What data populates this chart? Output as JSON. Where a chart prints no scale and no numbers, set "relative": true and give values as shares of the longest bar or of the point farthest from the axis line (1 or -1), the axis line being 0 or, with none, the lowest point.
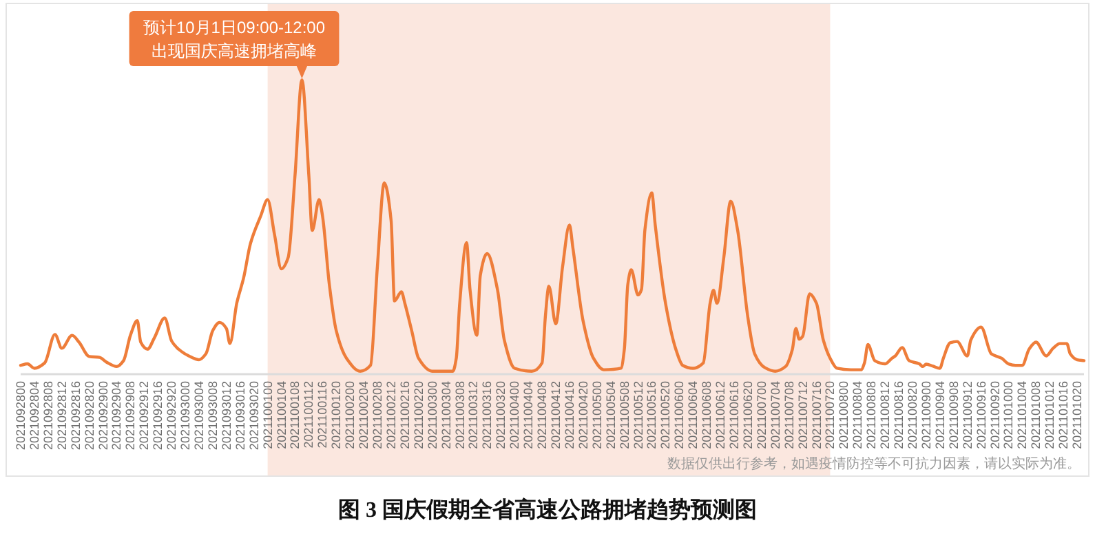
{
  "chart_data": {
    "type": "line",
    "title": "图 3 国庆假期全省高速公路拥堵趋势预测图",
    "relative": true,
    "color": "#ee7d3a",
    "x": [
      "2021-09-28T00:00",
      "2021-09-28T02:00",
      "2021-09-28T04:00",
      "2021-09-28T07:00",
      "2021-09-28T10:00",
      "2021-09-28T12:00",
      "2021-09-28T15:00",
      "2021-09-28T17:00",
      "2021-09-28T20:00",
      "2021-09-28T23:00",
      "2021-09-29T01:00",
      "2021-09-29T04:00",
      "2021-09-29T06:00",
      "2021-09-29T08:00",
      "2021-09-29T10:00",
      "2021-09-29T11:00",
      "2021-09-29T13:00",
      "2021-09-29T15:00",
      "2021-09-29T18:00",
      "2021-09-29T20:00",
      "2021-09-29T22:00",
      "2021-09-30T01:00",
      "2021-09-30T04:00",
      "2021-09-30T06:00",
      "2021-09-30T08:00",
      "2021-09-30T10:00",
      "2021-09-30T12:00",
      "2021-09-30T13:00",
      "2021-09-30T15:00",
      "2021-09-30T17:00",
      "2021-09-30T19:00",
      "2021-09-30T22:00",
      "2021-10-01T00:00",
      "2021-10-01T02:00",
      "2021-10-01T04:00",
      "2021-10-01T06:00",
      "2021-10-01T08:00",
      "2021-10-01T10:00",
      "2021-10-01T12:00",
      "2021-10-01T13:00",
      "2021-10-01T15:00",
      "2021-10-01T16:00",
      "2021-10-01T18:00",
      "2021-10-01T20:00",
      "2021-10-01T23:00",
      "2021-10-02T03:00",
      "2021-10-02T06:00",
      "2021-10-02T08:00",
      "2021-10-02T10:00",
      "2021-10-02T12:00",
      "2021-10-02T13:00",
      "2021-10-02T15:00",
      "2021-10-02T16:00",
      "2021-10-02T18:00",
      "2021-10-02T20:00",
      "2021-10-03T00:00",
      "2021-10-03T06:00",
      "2021-10-03T07:00",
      "2021-10-03T08:00",
      "2021-10-03T10:00",
      "2021-10-03T11:00",
      "2021-10-03T13:00",
      "2021-10-03T14:00",
      "2021-10-03T16:00",
      "2021-10-03T19:00",
      "2021-10-03T21:00",
      "2021-10-04T00:00",
      "2021-10-04T05:00",
      "2021-10-04T08:00",
      "2021-10-04T09:00",
      "2021-10-04T10:00",
      "2021-10-04T12:00",
      "2021-10-04T14:00",
      "2021-10-04T16:00",
      "2021-10-04T17:00",
      "2021-10-04T20:00",
      "2021-10-04T23:00",
      "2021-10-05T02:00",
      "2021-10-05T07:00",
      "2021-10-05T08:00",
      "2021-10-05T09:00",
      "2021-10-05T10:00",
      "2021-10-05T12:00",
      "2021-10-05T13:00",
      "2021-10-05T14:00",
      "2021-10-05T16:00",
      "2021-10-05T17:00",
      "2021-10-05T20:00",
      "2021-10-05T23:00",
      "2021-10-06T01:00",
      "2021-10-06T04:00",
      "2021-10-06T07:00",
      "2021-10-06T09:00",
      "2021-10-06T10:00",
      "2021-10-06T11:00",
      "2021-10-06T13:00",
      "2021-10-06T15:00",
      "2021-10-06T17:00",
      "2021-10-06T20:00",
      "2021-10-06T22:00",
      "2021-10-07T01:00",
      "2021-10-07T04:00",
      "2021-10-07T07:00",
      "2021-10-07T09:00",
      "2021-10-07T10:00",
      "2021-10-07T11:00",
      "2021-10-07T12:00",
      "2021-10-07T14:00",
      "2021-10-07T16:00",
      "2021-10-07T18:00",
      "2021-10-07T20:00",
      "2021-10-07T22:00",
      "2021-10-08T02:00",
      "2021-10-08T05:00",
      "2021-10-08T06:00",
      "2021-10-08T07:00",
      "2021-10-08T09:00",
      "2021-10-08T12:00",
      "2021-10-08T14:00",
      "2021-10-08T15:00",
      "2021-10-08T17:00",
      "2021-10-08T19:00",
      "2021-10-08T22:00",
      "2021-10-08T23:00",
      "2021-10-09T00:00",
      "2021-10-09T02:00",
      "2021-10-09T04:00",
      "2021-10-09T05:00",
      "2021-10-09T07:00",
      "2021-10-09T09:00",
      "2021-10-09T12:00",
      "2021-10-09T13:00",
      "2021-10-09T16:00",
      "2021-10-09T19:00",
      "2021-10-09T22:00",
      "2021-10-10T00:00",
      "2021-10-10T02:00",
      "2021-10-10T04:00",
      "2021-10-10T06:00",
      "2021-10-10T08:00",
      "2021-10-10T11:00",
      "2021-10-10T13:00",
      "2021-10-10T15:00",
      "2021-10-10T17:00",
      "2021-10-10T18:00",
      "2021-10-10T20:00",
      "2021-10-10T22:00"
    ],
    "values": [
      0.03,
      0.035,
      0.02,
      0.038,
      0.135,
      0.088,
      0.132,
      0.109,
      0.06,
      0.057,
      0.041,
      0.026,
      0.046,
      0.132,
      0.182,
      0.109,
      0.085,
      0.124,
      0.191,
      0.113,
      0.085,
      0.062,
      0.049,
      0.069,
      0.148,
      0.176,
      0.155,
      0.104,
      0.241,
      0.327,
      0.444,
      0.538,
      0.593,
      0.475,
      0.358,
      0.397,
      0.678,
      1,
      0.678,
      0.488,
      0.593,
      0.538,
      0.304,
      0.148,
      0.054,
      0.01,
      0.03,
      0.366,
      0.65,
      0.522,
      0.249,
      0.28,
      0.241,
      0.148,
      0.054,
      0.01,
      0.01,
      0.054,
      0.241,
      0.447,
      0.288,
      0.132,
      0.335,
      0.41,
      0.288,
      0.116,
      0.02,
      0.01,
      0.038,
      0.2,
      0.299,
      0.171,
      0.366,
      0.507,
      0.429,
      0.179,
      0.054,
      0.015,
      0.02,
      0.085,
      0.304,
      0.355,
      0.269,
      0.288,
      0.491,
      0.616,
      0.507,
      0.241,
      0.085,
      0.03,
      0.02,
      0.038,
      0.241,
      0.285,
      0.241,
      0.397,
      0.588,
      0.491,
      0.194,
      0.069,
      0.022,
      0.01,
      0.026,
      0.085,
      0.155,
      0.119,
      0.129,
      0.273,
      0.241,
      0.116,
      0.054,
      0.02,
      0.015,
      0.015,
      0.038,
      0.101,
      0.046,
      0.035,
      0.054,
      0.062,
      0.09,
      0.046,
      0.035,
      0.026,
      0.034,
      0.027,
      0.02,
      0.054,
      0.107,
      0.111,
      0.062,
      0.116,
      0.16,
      0.069,
      0.054,
      0.035,
      0.03,
      0.03,
      0.085,
      0.109,
      0.062,
      0.088,
      0.104,
      0.104,
      0.069,
      0.049,
      0.046
    ],
    "xlim": [
      "2021-09-28T00:00",
      "2021-10-10T22:00"
    ],
    "xticks": [
      {
        "value": "2021-09-28T00:00",
        "label": "2021092800"
      },
      {
        "value": "2021-09-28T04:00",
        "label": "2021092804"
      },
      {
        "value": "2021-09-28T08:00",
        "label": "2021092808"
      },
      {
        "value": "2021-09-28T12:00",
        "label": "2021092812"
      },
      {
        "value": "2021-09-28T16:00",
        "label": "2021092816"
      },
      {
        "value": "2021-09-28T20:00",
        "label": "2021092820"
      },
      {
        "value": "2021-09-29T00:00",
        "label": "2021092900"
      },
      {
        "value": "2021-09-29T04:00",
        "label": "2021092904"
      },
      {
        "value": "2021-09-29T08:00",
        "label": "2021092908"
      },
      {
        "value": "2021-09-29T12:00",
        "label": "2021092912"
      },
      {
        "value": "2021-09-29T16:00",
        "label": "2021092916"
      },
      {
        "value": "2021-09-29T20:00",
        "label": "2021092920"
      },
      {
        "value": "2021-09-30T00:00",
        "label": "2021093000"
      },
      {
        "value": "2021-09-30T04:00",
        "label": "2021093004"
      },
      {
        "value": "2021-09-30T08:00",
        "label": "2021093008"
      },
      {
        "value": "2021-09-30T12:00",
        "label": "2021093012"
      },
      {
        "value": "2021-09-30T16:00",
        "label": "2021093016"
      },
      {
        "value": "2021-09-30T20:00",
        "label": "2021093020"
      },
      {
        "value": "2021-10-01T00:00",
        "label": "2021100100"
      },
      {
        "value": "2021-10-01T04:00",
        "label": "2021100104"
      },
      {
        "value": "2021-10-01T08:00",
        "label": "2021100108"
      },
      {
        "value": "2021-10-01T12:00",
        "label": "2021100112"
      },
      {
        "value": "2021-10-01T16:00",
        "label": "2021100116"
      },
      {
        "value": "2021-10-01T20:00",
        "label": "2021100120"
      },
      {
        "value": "2021-10-02T00:00",
        "label": "2021100200"
      },
      {
        "value": "2021-10-02T04:00",
        "label": "2021100204"
      },
      {
        "value": "2021-10-02T08:00",
        "label": "2021100208"
      },
      {
        "value": "2021-10-02T12:00",
        "label": "2021100212"
      },
      {
        "value": "2021-10-02T16:00",
        "label": "2021100216"
      },
      {
        "value": "2021-10-02T20:00",
        "label": "2021100220"
      },
      {
        "value": "2021-10-03T00:00",
        "label": "2021100300"
      },
      {
        "value": "2021-10-03T04:00",
        "label": "2021100304"
      },
      {
        "value": "2021-10-03T08:00",
        "label": "2021100308"
      },
      {
        "value": "2021-10-03T12:00",
        "label": "2021100312"
      },
      {
        "value": "2021-10-03T16:00",
        "label": "2021100316"
      },
      {
        "value": "2021-10-03T20:00",
        "label": "2021100320"
      },
      {
        "value": "2021-10-04T00:00",
        "label": "2021100400"
      },
      {
        "value": "2021-10-04T04:00",
        "label": "2021100404"
      },
      {
        "value": "2021-10-04T08:00",
        "label": "2021100408"
      },
      {
        "value": "2021-10-04T12:00",
        "label": "2021100412"
      },
      {
        "value": "2021-10-04T16:00",
        "label": "2021100416"
      },
      {
        "value": "2021-10-04T20:00",
        "label": "2021100420"
      },
      {
        "value": "2021-10-05T00:00",
        "label": "2021100500"
      },
      {
        "value": "2021-10-05T04:00",
        "label": "2021100504"
      },
      {
        "value": "2021-10-05T08:00",
        "label": "2021100508"
      },
      {
        "value": "2021-10-05T12:00",
        "label": "2021100512"
      },
      {
        "value": "2021-10-05T16:00",
        "label": "2021100516"
      },
      {
        "value": "2021-10-05T20:00",
        "label": "2021100520"
      },
      {
        "value": "2021-10-06T00:00",
        "label": "2021100600"
      },
      {
        "value": "2021-10-06T04:00",
        "label": "2021100604"
      },
      {
        "value": "2021-10-06T08:00",
        "label": "2021100608"
      },
      {
        "value": "2021-10-06T12:00",
        "label": "2021100612"
      },
      {
        "value": "2021-10-06T16:00",
        "label": "2021100616"
      },
      {
        "value": "2021-10-06T20:00",
        "label": "2021100620"
      },
      {
        "value": "2021-10-07T00:00",
        "label": "2021100700"
      },
      {
        "value": "2021-10-07T04:00",
        "label": "2021100704"
      },
      {
        "value": "2021-10-07T08:00",
        "label": "2021100708"
      },
      {
        "value": "2021-10-07T12:00",
        "label": "2021100712"
      },
      {
        "value": "2021-10-07T16:00",
        "label": "2021100716"
      },
      {
        "value": "2021-10-07T20:00",
        "label": "2021100720"
      },
      {
        "value": "2021-10-08T00:00",
        "label": "2021100800"
      },
      {
        "value": "2021-10-08T04:00",
        "label": "2021100804"
      },
      {
        "value": "2021-10-08T08:00",
        "label": "2021100808"
      },
      {
        "value": "2021-10-08T12:00",
        "label": "2021100812"
      },
      {
        "value": "2021-10-08T16:00",
        "label": "2021100816"
      },
      {
        "value": "2021-10-08T20:00",
        "label": "2021100820"
      },
      {
        "value": "2021-10-09T00:00",
        "label": "2021100900"
      },
      {
        "value": "2021-10-09T04:00",
        "label": "2021100904"
      },
      {
        "value": "2021-10-09T08:00",
        "label": "2021100908"
      },
      {
        "value": "2021-10-09T12:00",
        "label": "2021100912"
      },
      {
        "value": "2021-10-09T16:00",
        "label": "2021100916"
      },
      {
        "value": "2021-10-09T20:00",
        "label": "2021100920"
      },
      {
        "value": "2021-10-10T00:00",
        "label": "2021101000"
      },
      {
        "value": "2021-10-10T04:00",
        "label": "2021101004"
      },
      {
        "value": "2021-10-10T08:00",
        "label": "2021101008"
      },
      {
        "value": "2021-10-10T12:00",
        "label": "2021101012"
      },
      {
        "value": "2021-10-10T16:00",
        "label": "2021101016"
      },
      {
        "value": "2021-10-10T20:00",
        "label": "2021101020"
      }
    ],
    "bands": [
      {
        "axis": "x",
        "from": "2021-10-01T00:00",
        "to": "2021-10-07T20:00",
        "color": "#fbe7df"
      }
    ],
    "annotations": [
      {
        "text": "预计10月1日09:00-12:00\n出现国庆高速拥堵高峰",
        "x": "2021-10-01T10:00",
        "y": 1
      },
      "数据仅供出行参考，如遇疫情防控等不可抗力因素，请以实际为准。"
    ]
  }
}
